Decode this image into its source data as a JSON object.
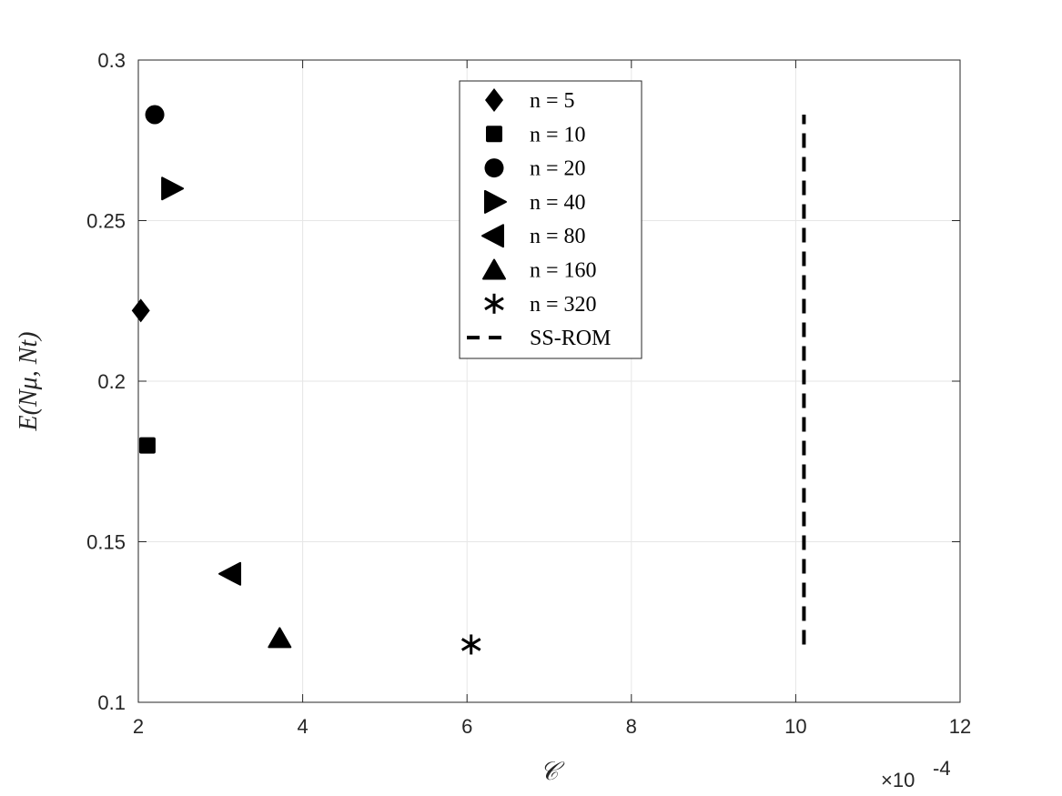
{
  "chart_data": {
    "type": "scatter",
    "xlabel": "𝒞",
    "ylabel": "E(Nμ, Nt)",
    "x_exponent_label": "×10",
    "x_exponent": "-4",
    "xlim": [
      2,
      12
    ],
    "ylim": [
      0.1,
      0.3
    ],
    "xticks": [
      2,
      4,
      6,
      8,
      10,
      12
    ],
    "xtick_labels": [
      "2",
      "4",
      "6",
      "8",
      "10",
      "12"
    ],
    "yticks": [
      0.1,
      0.15,
      0.2,
      0.25,
      0.3
    ],
    "ytick_labels": [
      "0.1",
      "0.15",
      "0.2",
      "0.25",
      "0.3"
    ],
    "grid": true,
    "legend_placement": "top-center",
    "color": "#000000",
    "series": [
      {
        "name": "n = 5",
        "marker": "diamond",
        "x": [
          2.03
        ],
        "y": [
          0.222
        ]
      },
      {
        "name": "n = 10",
        "marker": "square",
        "x": [
          2.11
        ],
        "y": [
          0.18
        ]
      },
      {
        "name": "n = 20",
        "marker": "circle",
        "x": [
          2.2
        ],
        "y": [
          0.283
        ]
      },
      {
        "name": "n = 40",
        "marker": "triangle-right",
        "x": [
          2.4
        ],
        "y": [
          0.26
        ]
      },
      {
        "name": "n = 80",
        "marker": "triangle-left",
        "x": [
          3.13
        ],
        "y": [
          0.14
        ]
      },
      {
        "name": "n = 160",
        "marker": "triangle-up",
        "x": [
          3.72
        ],
        "y": [
          0.12
        ]
      },
      {
        "name": "n = 320",
        "marker": "asterisk",
        "x": [
          6.05
        ],
        "y": [
          0.118
        ]
      },
      {
        "name": "SS-ROM",
        "marker": "dashed-line",
        "x": [
          10.1,
          10.1
        ],
        "y": [
          0.118,
          0.283
        ]
      }
    ]
  }
}
